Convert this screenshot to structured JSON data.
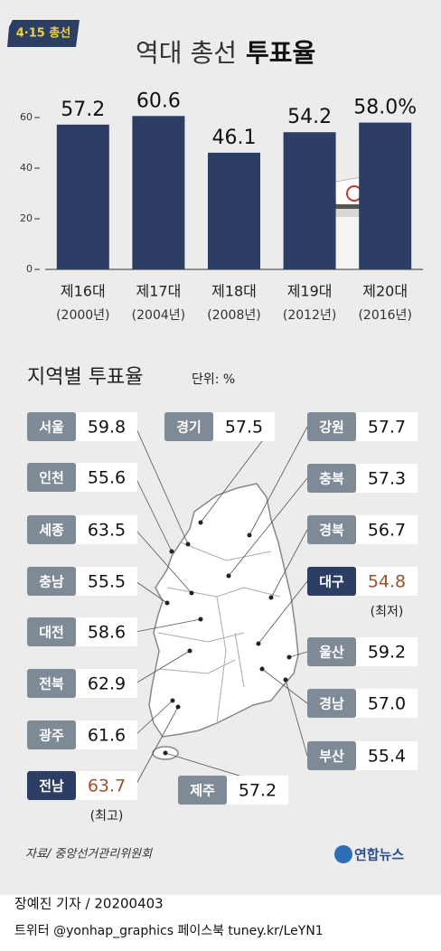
{
  "header": {
    "badge": "4·15 총선",
    "title": "역대 총선",
    "title_emphasis": "투표율"
  },
  "chart_data": {
    "type": "bar",
    "categories": [
      "제16대",
      "제17대",
      "제18대",
      "제19대",
      "제20대"
    ],
    "category_years": [
      "(2000년)",
      "(2004년)",
      "(2008년)",
      "(2012년)",
      "(2016년)"
    ],
    "values": [
      57.2,
      60.6,
      46.1,
      54.2,
      58.0
    ],
    "value_labels": [
      "57.2",
      "60.6",
      "46.1",
      "54.2",
      "58.0%"
    ],
    "color": "#2d3e64",
    "ylim": [
      0,
      65
    ],
    "yticks": [
      0,
      20,
      40,
      60
    ]
  },
  "regional": {
    "title": "지역별 투표율",
    "unit": "단위: %",
    "regions": [
      {
        "name": "서울",
        "value": 59.8
      },
      {
        "name": "경기",
        "value": 57.5
      },
      {
        "name": "강원",
        "value": 57.7
      },
      {
        "name": "인천",
        "value": 55.6
      },
      {
        "name": "충북",
        "value": 57.3
      },
      {
        "name": "세종",
        "value": 63.5
      },
      {
        "name": "경북",
        "value": 56.7
      },
      {
        "name": "충남",
        "value": 55.5
      },
      {
        "name": "대구",
        "value": 54.8,
        "note": "(최저)"
      },
      {
        "name": "대전",
        "value": 58.6
      },
      {
        "name": "울산",
        "value": 59.2
      },
      {
        "name": "전북",
        "value": 62.9
      },
      {
        "name": "경남",
        "value": 57.0,
        "value_label": "57.0"
      },
      {
        "name": "광주",
        "value": 61.6
      },
      {
        "name": "부산",
        "value": 55.4
      },
      {
        "name": "전남",
        "value": 63.7,
        "note": "(최고)"
      },
      {
        "name": "제주",
        "value": 57.2
      }
    ]
  },
  "footer": {
    "source": "자료/ 중앙선거관리위원회",
    "logo": "연합뉴스",
    "byline": "장예진 기자 / 20200403",
    "social": "트위터 @yonhap_graphics  페이스북 tuney.kr/LeYN1"
  }
}
